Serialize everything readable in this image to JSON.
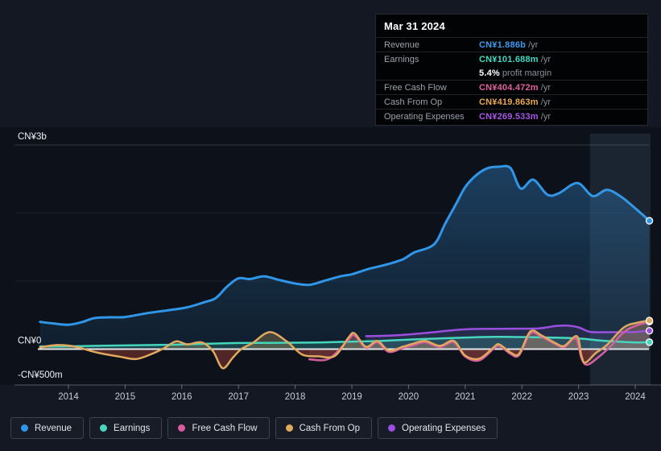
{
  "tooltip": {
    "date": "Mar 31 2024",
    "rows": [
      {
        "label": "Revenue",
        "value": "CN¥1.886b",
        "suffix": " /yr",
        "color": "#3b9bef"
      },
      {
        "label": "Earnings",
        "value": "CN¥101.688m",
        "suffix": " /yr",
        "color": "#44d8c0"
      },
      {
        "label": "",
        "value": "5.4%",
        "suffix": " profit margin",
        "color": "#ffffff"
      },
      {
        "label": "Free Cash Flow",
        "value": "CN¥404.472m",
        "suffix": " /yr",
        "color": "#e0609f"
      },
      {
        "label": "Cash From Op",
        "value": "CN¥419.863m",
        "suffix": " /yr",
        "color": "#e8a952"
      },
      {
        "label": "Operating Expenses",
        "value": "CN¥269.533m",
        "suffix": " /yr",
        "color": "#a855e8"
      }
    ]
  },
  "legend": [
    {
      "label": "Revenue",
      "color": "#2f96e8"
    },
    {
      "label": "Earnings",
      "color": "#45d6bd"
    },
    {
      "label": "Free Cash Flow",
      "color": "#d65c9e"
    },
    {
      "label": "Cash From Op",
      "color": "#e0a95e"
    },
    {
      "label": "Operating Expenses",
      "color": "#9b4fe0"
    }
  ],
  "chart_data": {
    "type": "line",
    "title": "",
    "xlabel": "",
    "ylabel": "CN¥",
    "unit": "CN¥ millions",
    "x_unit": "year (fractional = quarter)",
    "ylim": [
      -520,
      3000
    ],
    "xlim": [
      2013.5,
      2024.25
    ],
    "grid_values": [
      3000,
      2000,
      1000,
      0
    ],
    "y_axis_labels": [
      {
        "text": "CN¥3b",
        "value": 3000
      },
      {
        "text": "CN¥0",
        "value": 0
      },
      {
        "text": "-CN¥500m",
        "value": -500
      }
    ],
    "x_ticks": [
      "2014",
      "2015",
      "2016",
      "2017",
      "2018",
      "2019",
      "2020",
      "2021",
      "2022",
      "2023",
      "2024"
    ],
    "highlight_range": [
      2023.2,
      2024.27
    ],
    "legend_position": "bottom",
    "series": [
      {
        "name": "Revenue",
        "color": "#2f96e8",
        "style": "area-gradient",
        "points": [
          [
            2013.5,
            400
          ],
          [
            2013.75,
            375
          ],
          [
            2014,
            358
          ],
          [
            2014.25,
            400
          ],
          [
            2014.45,
            455
          ],
          [
            2014.7,
            468
          ],
          [
            2015,
            472
          ],
          [
            2015.4,
            530
          ],
          [
            2015.8,
            575
          ],
          [
            2016.1,
            615
          ],
          [
            2016.4,
            690
          ],
          [
            2016.6,
            750
          ],
          [
            2016.8,
            920
          ],
          [
            2017,
            1040
          ],
          [
            2017.2,
            1030
          ],
          [
            2017.45,
            1070
          ],
          [
            2017.7,
            1020
          ],
          [
            2018,
            965
          ],
          [
            2018.25,
            945
          ],
          [
            2018.5,
            1000
          ],
          [
            2018.8,
            1070
          ],
          [
            2019,
            1100
          ],
          [
            2019.3,
            1180
          ],
          [
            2019.6,
            1240
          ],
          [
            2019.9,
            1320
          ],
          [
            2020.1,
            1420
          ],
          [
            2020.45,
            1540
          ],
          [
            2020.65,
            1850
          ],
          [
            2020.85,
            2150
          ],
          [
            2021,
            2380
          ],
          [
            2021.2,
            2560
          ],
          [
            2021.4,
            2660
          ],
          [
            2021.6,
            2680
          ],
          [
            2021.8,
            2660
          ],
          [
            2021.98,
            2360
          ],
          [
            2022.2,
            2490
          ],
          [
            2022.45,
            2270
          ],
          [
            2022.65,
            2290
          ],
          [
            2022.98,
            2440
          ],
          [
            2023.25,
            2250
          ],
          [
            2023.5,
            2340
          ],
          [
            2023.75,
            2240
          ],
          [
            2024,
            2070
          ],
          [
            2024.25,
            1886
          ]
        ]
      },
      {
        "name": "Earnings",
        "color": "#45d6bd",
        "style": "area",
        "points": [
          [
            2013.5,
            40
          ],
          [
            2014,
            42
          ],
          [
            2014.5,
            48
          ],
          [
            2015,
            55
          ],
          [
            2015.5,
            60
          ],
          [
            2016,
            68
          ],
          [
            2016.5,
            80
          ],
          [
            2017,
            90
          ],
          [
            2017.5,
            92
          ],
          [
            2018,
            95
          ],
          [
            2018.5,
            100
          ],
          [
            2019,
            110
          ],
          [
            2019.5,
            120
          ],
          [
            2020,
            140
          ],
          [
            2020.5,
            155
          ],
          [
            2021,
            170
          ],
          [
            2021.5,
            180
          ],
          [
            2022,
            178
          ],
          [
            2022.5,
            170
          ],
          [
            2022.8,
            165
          ],
          [
            2023.1,
            150
          ],
          [
            2023.4,
            125
          ],
          [
            2023.7,
            110
          ],
          [
            2024,
            98
          ],
          [
            2024.25,
            102
          ]
        ]
      },
      {
        "name": "Free Cash Flow",
        "color": "#d65c9e",
        "style": "area",
        "points": [
          [
            2018.25,
            -150
          ],
          [
            2018.6,
            -140
          ],
          [
            2018.95,
            150
          ],
          [
            2019.05,
            200
          ],
          [
            2019.25,
            20
          ],
          [
            2019.45,
            100
          ],
          [
            2019.65,
            -40
          ],
          [
            2019.9,
            15
          ],
          [
            2020.1,
            60
          ],
          [
            2020.3,
            100
          ],
          [
            2020.55,
            30
          ],
          [
            2020.8,
            100
          ],
          [
            2021,
            -110
          ],
          [
            2021.25,
            -165
          ],
          [
            2021.5,
            5
          ],
          [
            2021.6,
            50
          ],
          [
            2021.8,
            -70
          ],
          [
            2021.95,
            -90
          ],
          [
            2022.15,
            230
          ],
          [
            2022.35,
            180
          ],
          [
            2022.6,
            70
          ],
          [
            2022.75,
            30
          ],
          [
            2022.95,
            160
          ],
          [
            2023.05,
            -130
          ],
          [
            2023.15,
            -230
          ],
          [
            2023.35,
            -120
          ],
          [
            2023.55,
            30
          ],
          [
            2023.8,
            250
          ],
          [
            2024,
            340
          ],
          [
            2024.25,
            404
          ]
        ]
      },
      {
        "name": "Cash From Op",
        "color": "#e0a95e",
        "style": "area-posneg",
        "points": [
          [
            2013.5,
            25
          ],
          [
            2013.8,
            60
          ],
          [
            2014.1,
            40
          ],
          [
            2014.5,
            -50
          ],
          [
            2014.9,
            -110
          ],
          [
            2015.2,
            -145
          ],
          [
            2015.5,
            -60
          ],
          [
            2015.7,
            20
          ],
          [
            2015.9,
            115
          ],
          [
            2016.1,
            70
          ],
          [
            2016.35,
            100
          ],
          [
            2016.55,
            -30
          ],
          [
            2016.72,
            -280
          ],
          [
            2016.9,
            -125
          ],
          [
            2017.05,
            0
          ],
          [
            2017.25,
            90
          ],
          [
            2017.55,
            250
          ],
          [
            2017.85,
            115
          ],
          [
            2018,
            0
          ],
          [
            2018.15,
            -90
          ],
          [
            2018.4,
            -105
          ],
          [
            2018.7,
            -100
          ],
          [
            2018.95,
            180
          ],
          [
            2019.05,
            230
          ],
          [
            2019.25,
            35
          ],
          [
            2019.45,
            120
          ],
          [
            2019.65,
            -20
          ],
          [
            2019.9,
            35
          ],
          [
            2020.1,
            85
          ],
          [
            2020.3,
            120
          ],
          [
            2020.55,
            48
          ],
          [
            2020.8,
            120
          ],
          [
            2021,
            -95
          ],
          [
            2021.25,
            -140
          ],
          [
            2021.5,
            24
          ],
          [
            2021.6,
            70
          ],
          [
            2021.8,
            -50
          ],
          [
            2021.95,
            -70
          ],
          [
            2022.15,
            260
          ],
          [
            2022.35,
            200
          ],
          [
            2022.6,
            85
          ],
          [
            2022.75,
            48
          ],
          [
            2022.97,
            190
          ],
          [
            2023.05,
            -95
          ],
          [
            2023.12,
            -200
          ],
          [
            2023.3,
            -60
          ],
          [
            2023.5,
            60
          ],
          [
            2023.8,
            320
          ],
          [
            2024.05,
            390
          ],
          [
            2024.25,
            420
          ]
        ]
      },
      {
        "name": "Operating Expenses",
        "color": "#9b4fe0",
        "style": "area",
        "points": [
          [
            2019.25,
            190
          ],
          [
            2019.7,
            200
          ],
          [
            2020,
            215
          ],
          [
            2020.4,
            245
          ],
          [
            2020.9,
            285
          ],
          [
            2021.3,
            297
          ],
          [
            2021.8,
            300
          ],
          [
            2022.3,
            305
          ],
          [
            2022.6,
            340
          ],
          [
            2022.8,
            345
          ],
          [
            2023,
            320
          ],
          [
            2023.2,
            255
          ],
          [
            2023.5,
            248
          ],
          [
            2023.8,
            250
          ],
          [
            2024,
            252
          ],
          [
            2024.25,
            270
          ]
        ]
      }
    ]
  }
}
